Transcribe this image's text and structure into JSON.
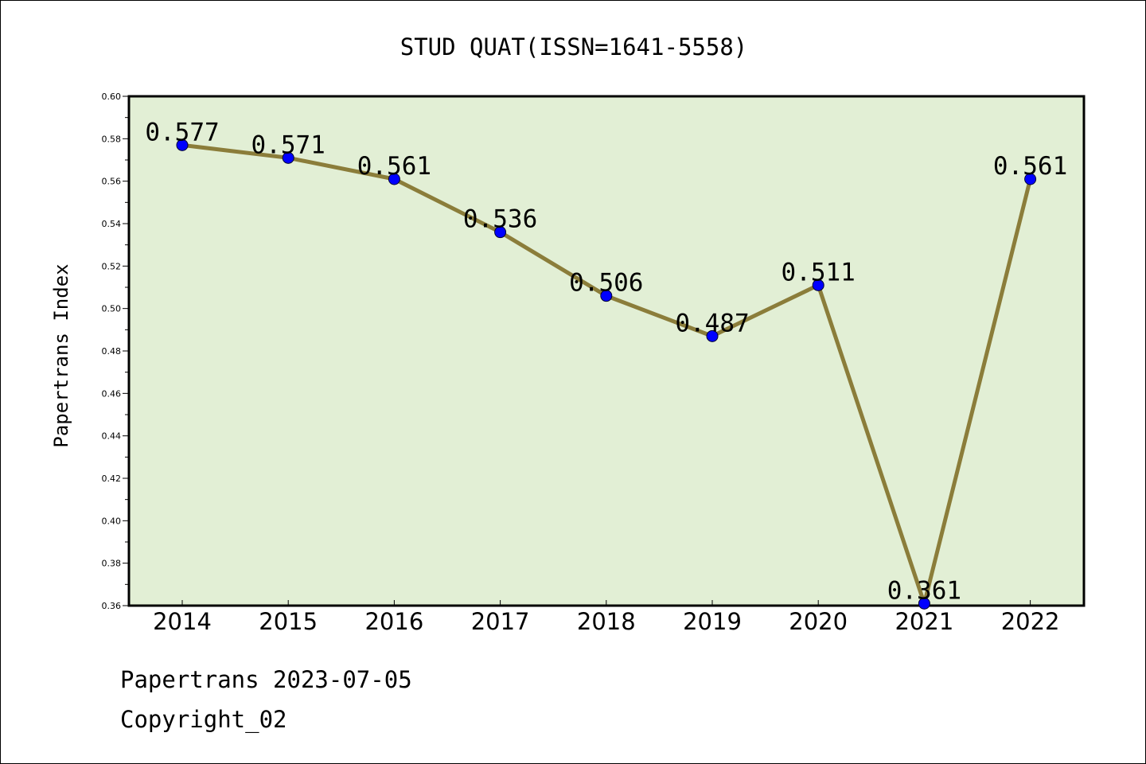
{
  "chart_data": {
    "type": "line",
    "title": "STUD QUAT(ISSN=1641-5558)",
    "ylabel": "Papertrans Index",
    "xlabel": "",
    "categories": [
      "2014",
      "2015",
      "2016",
      "2017",
      "2018",
      "2019",
      "2020",
      "2021",
      "2022"
    ],
    "values": [
      0.577,
      0.571,
      0.561,
      0.536,
      0.506,
      0.487,
      0.511,
      0.361,
      0.561
    ],
    "data_labels": [
      "0.577",
      "0.571",
      "0.561",
      "0.536",
      "0.506",
      "0.487",
      "0.511",
      "0.361",
      "0.561"
    ],
    "ylim": [
      0.36,
      0.6
    ],
    "yticks": [
      "0.36",
      "0.38",
      "0.40",
      "0.42",
      "0.44",
      "0.46",
      "0.48",
      "0.50",
      "0.52",
      "0.54",
      "0.56",
      "0.58",
      "0.60"
    ],
    "grid": false,
    "colors": {
      "plot_background": "#e2efd5",
      "line": "#8b7d3a",
      "marker": "#0000ff"
    }
  },
  "footer": {
    "line1": "Papertrans 2023-07-05",
    "line2": "Copyright_02"
  }
}
